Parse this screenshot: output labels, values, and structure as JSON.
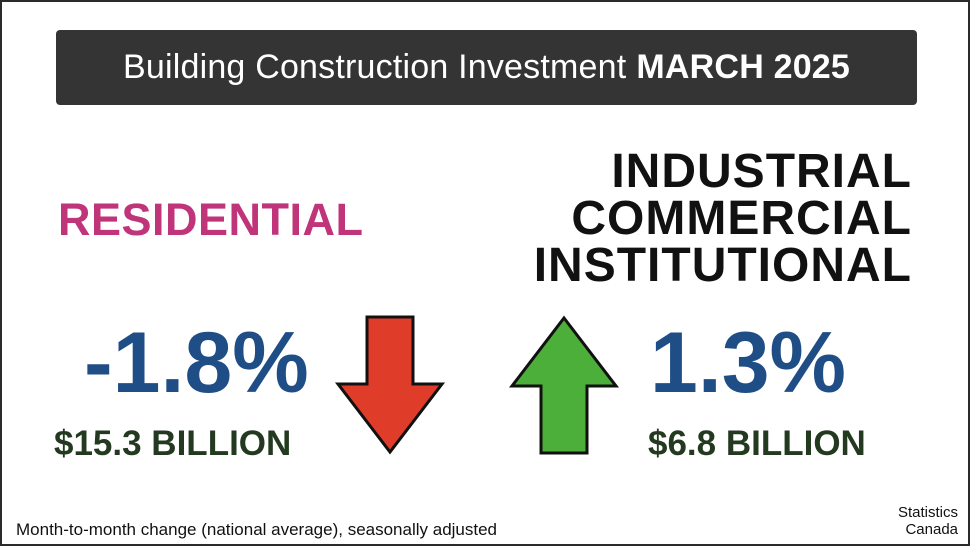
{
  "title": {
    "regular": "Building Construction Investment",
    "bold": "MARCH 2025"
  },
  "residential": {
    "heading": "RESIDENTIAL",
    "change": "-1.8%",
    "amount": "$15.3 BILLION",
    "direction": "down-arrow-icon",
    "arrow_color": "#e03c2a"
  },
  "nonresidential": {
    "heading_lines": [
      "INDUSTRIAL",
      "COMMERCIAL",
      "INSTITUTIONAL"
    ],
    "change": "1.3%",
    "amount": "$6.8 BILLION",
    "direction": "up-arrow-icon",
    "arrow_color": "#4caf3a"
  },
  "colors": {
    "residential_heading": "#c0357a",
    "percent": "#1f4e86",
    "amount": "#233a21",
    "title_bar": "#343434"
  },
  "footnote": "Month-to-month change (national average), seasonally adjusted",
  "source": {
    "line1": "Statistics",
    "line2": "Canada"
  }
}
